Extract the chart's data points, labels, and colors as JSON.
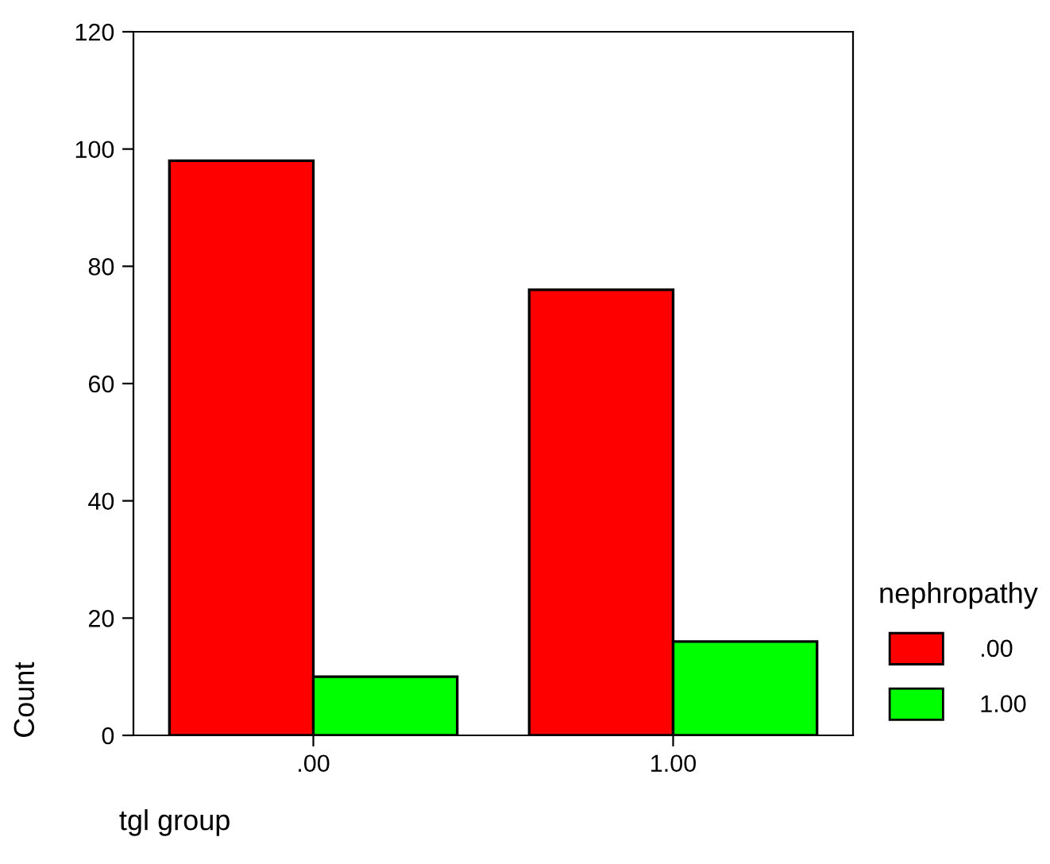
{
  "chart_data": {
    "type": "bar",
    "xlabel": "tgl group",
    "ylabel": "Count",
    "legend_title": "nephropathy",
    "categories": [
      ".00",
      "1.00"
    ],
    "series": [
      {
        "name": ".00",
        "color": "#ff0000",
        "values": [
          98,
          76
        ]
      },
      {
        "name": "1.00",
        "color": "#00ff00",
        "values": [
          10,
          16
        ]
      }
    ],
    "ylim": [
      0,
      120
    ],
    "yticks": [
      0,
      20,
      40,
      60,
      80,
      100,
      120
    ],
    "grid": false,
    "legend": "right"
  }
}
